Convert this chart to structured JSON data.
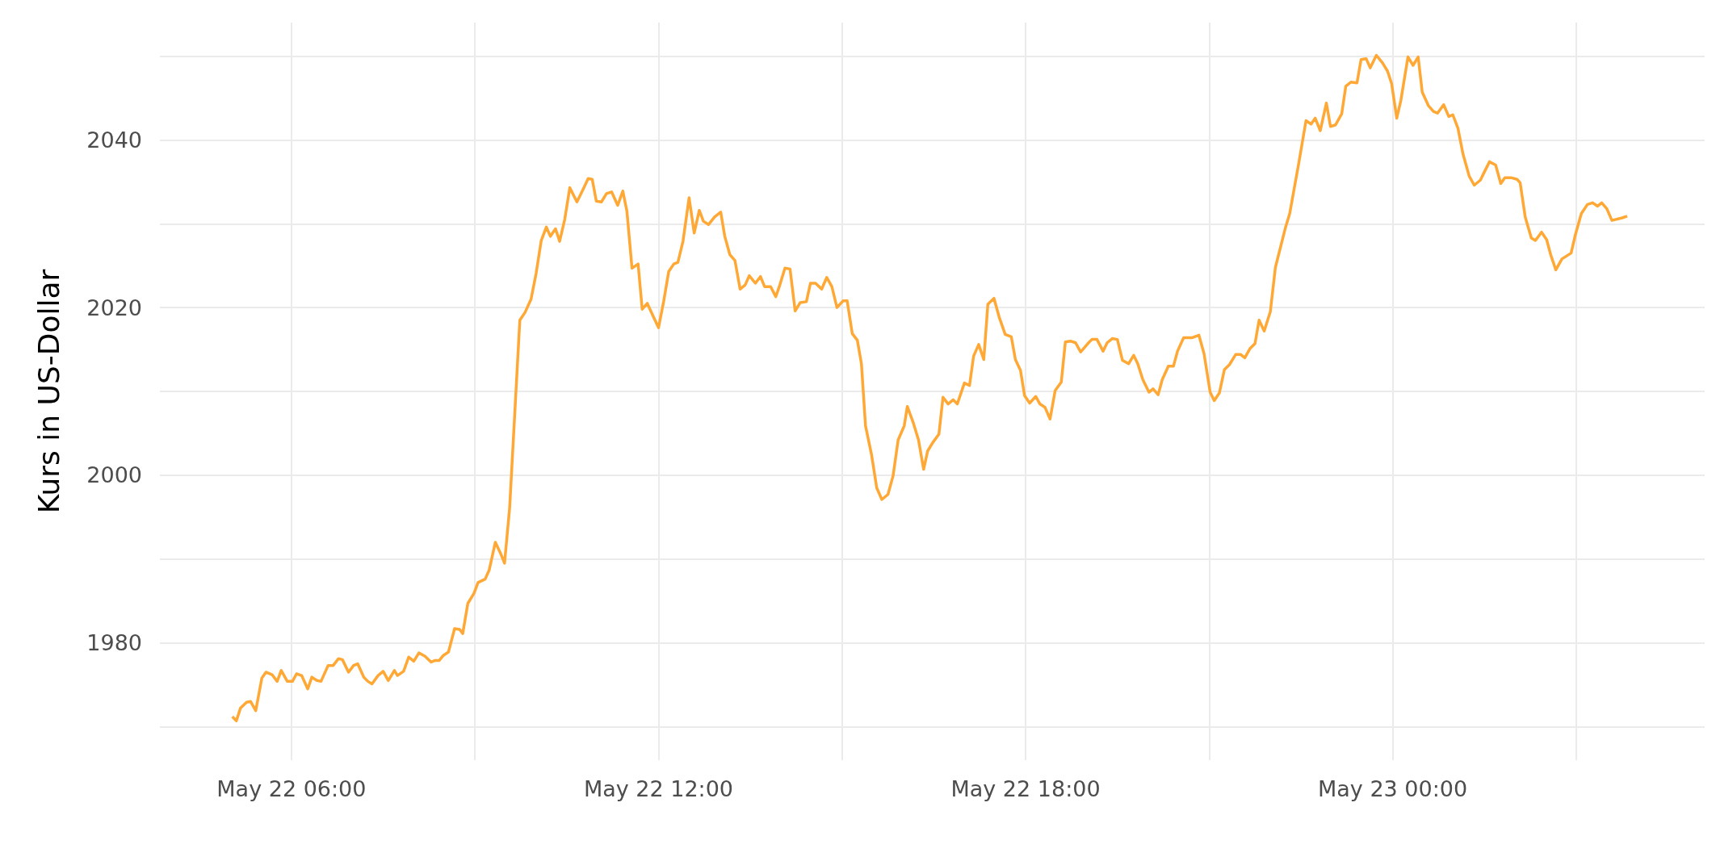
{
  "chart_data": {
    "type": "line",
    "ylabel": "Kurs in US-Dollar",
    "x": [
      "--05-22T05:02",
      "--05-22T05:06",
      "--05-22T05:10",
      "--05-22T05:16",
      "--05-22T05:20",
      "--05-22T05:25",
      "--05-22T05:31",
      "--05-22T05:35",
      "--05-22T05:41",
      "--05-22T05:46",
      "--05-22T05:50",
      "--05-22T05:56",
      "--05-22T06:01",
      "--05-22T06:05",
      "--05-22T06:10",
      "--05-22T06:16",
      "--05-22T06:20",
      "--05-22T06:25",
      "--05-22T06:29",
      "--05-22T06:36",
      "--05-22T06:41",
      "--05-22T06:46",
      "--05-22T06:50",
      "--05-22T06:56",
      "--05-22T07:01",
      "--05-22T07:05",
      "--05-22T07:11",
      "--05-22T07:15",
      "--05-22T07:19",
      "--05-22T07:25",
      "--05-22T07:30",
      "--05-22T07:35",
      "--05-22T07:41",
      "--05-22T07:44",
      "--05-22T07:50",
      "--05-22T07:55",
      "--05-22T08:00",
      "--05-22T08:05",
      "--05-22T08:11",
      "--05-22T08:17",
      "--05-22T08:21",
      "--05-22T08:25",
      "--05-22T08:29",
      "--05-22T08:34",
      "--05-22T08:40",
      "--05-22T08:45",
      "--05-22T08:48",
      "--05-22T08:53",
      "--05-22T08:59",
      "--05-22T09:03",
      "--05-22T09:10",
      "--05-22T09:14",
      "--05-22T09:20",
      "--05-22T09:25",
      "--05-22T09:29",
      "--05-22T09:34",
      "--05-22T09:44",
      "--05-22T09:49",
      "--05-22T09:55",
      "--05-22T10:00",
      "--05-22T10:05",
      "--05-22T10:10",
      "--05-22T10:14",
      "--05-22T10:19",
      "--05-22T10:23",
      "--05-22T10:28",
      "--05-22T10:33",
      "--05-22T10:40",
      "--05-22T10:46",
      "--05-22T10:51",
      "--05-22T10:55",
      "--05-22T10:59",
      "--05-22T11:04",
      "--05-22T11:09",
      "--05-22T11:14",
      "--05-22T11:20",
      "--05-22T11:25",
      "--05-22T11:29",
      "--05-22T11:34",
      "--05-22T11:40",
      "--05-22T11:44",
      "--05-22T11:49",
      "--05-22T11:55",
      "--05-22T12:00",
      "--05-22T12:05",
      "--05-22T12:10",
      "--05-22T12:15",
      "--05-22T12:19",
      "--05-22T12:24",
      "--05-22T12:30",
      "--05-22T12:35",
      "--05-22T12:40",
      "--05-22T12:44",
      "--05-22T12:49",
      "--05-22T12:55",
      "--05-22T13:01",
      "--05-22T13:05",
      "--05-22T13:10",
      "--05-22T13:15",
      "--05-22T13:20",
      "--05-22T13:25",
      "--05-22T13:29",
      "--05-22T13:35",
      "--05-22T13:40",
      "--05-22T13:44",
      "--05-22T13:50",
      "--05-22T13:55",
      "--05-22T13:59",
      "--05-22T14:04",
      "--05-22T14:09",
      "--05-22T14:14",
      "--05-22T14:19",
      "--05-22T14:25",
      "--05-22T14:29",
      "--05-22T14:34",
      "--05-22T14:40",
      "--05-22T14:45",
      "--05-22T14:50",
      "--05-22T14:55",
      "--05-22T15:01",
      "--05-22T15:05",
      "--05-22T15:10",
      "--05-22T15:15",
      "--05-22T15:19",
      "--05-22T15:23",
      "--05-22T15:29",
      "--05-22T15:34",
      "--05-22T15:39",
      "--05-22T15:45",
      "--05-22T15:50",
      "--05-22T15:55",
      "--05-22T16:01",
      "--05-22T16:04",
      "--05-22T16:10",
      "--05-22T16:15",
      "--05-22T16:20",
      "--05-22T16:24",
      "--05-22T16:29",
      "--05-22T16:35",
      "--05-22T16:39",
      "--05-22T16:44",
      "--05-22T16:49",
      "--05-22T16:53",
      "--05-22T17:00",
      "--05-22T17:05",
      "--05-22T17:09",
      "--05-22T17:14",
      "--05-22T17:19",
      "--05-22T17:23",
      "--05-22T17:29",
      "--05-22T17:34",
      "--05-22T17:40",
      "--05-22T17:46",
      "--05-22T17:50",
      "--05-22T17:55",
      "--05-22T17:59",
      "--05-22T18:04",
      "--05-22T18:10",
      "--05-22T18:14",
      "--05-22T18:19",
      "--05-22T18:24",
      "--05-22T18:29",
      "--05-22T18:35",
      "--05-22T18:39",
      "--05-22T18:44",
      "--05-22T18:49",
      "--05-22T18:54",
      "--05-22T19:01",
      "--05-22T19:05",
      "--05-22T19:10",
      "--05-22T19:16",
      "--05-22T19:20",
      "--05-22T19:25",
      "--05-22T19:30",
      "--05-22T19:35",
      "--05-22T19:41",
      "--05-22T19:46",
      "--05-22T19:50",
      "--05-22T19:55",
      "--05-22T20:01",
      "--05-22T20:05",
      "--05-22T20:10",
      "--05-22T20:14",
      "--05-22T20:20",
      "--05-22T20:25",
      "--05-22T20:29",
      "--05-22T20:35",
      "--05-22T20:43",
      "--05-22T20:50",
      "--05-22T20:55",
      "--05-22T21:01",
      "--05-22T21:05",
      "--05-22T21:10",
      "--05-22T21:15",
      "--05-22T21:20",
      "--05-22T21:26",
      "--05-22T21:31",
      "--05-22T21:35",
      "--05-22T21:40",
      "--05-22T21:45",
      "--05-22T21:49",
      "--05-22T21:54",
      "--05-22T22:00",
      "--05-22T22:05",
      "--05-22T22:15",
      "--05-22T22:19",
      "--05-22T22:28",
      "--05-22T22:35",
      "--05-22T22:40",
      "--05-22T22:44",
      "--05-22T22:49",
      "--05-22T22:55",
      "--05-22T22:59",
      "--05-22T23:04",
      "--05-22T23:10",
      "--05-22T23:14",
      "--05-22T23:19",
      "--05-22T23:25",
      "--05-22T23:29",
      "--05-22T23:34",
      "--05-22T23:38",
      "--05-22T23:44",
      "--05-22T23:50",
      "--05-22T23:55",
      "--05-22T23:59",
      "--05-23T00:04",
      "--05-23T00:08",
      "--05-23T00:15",
      "--05-23T00:20",
      "--05-23T00:25",
      "--05-23T00:29",
      "--05-23T00:35",
      "--05-23T00:40",
      "--05-23T00:44",
      "--05-23T00:50",
      "--05-23T00:55",
      "--05-23T00:59",
      "--05-23T01:04",
      "--05-23T01:09",
      "--05-23T01:15",
      "--05-23T01:20",
      "--05-23T01:26",
      "--05-23T01:30",
      "--05-23T01:35",
      "--05-23T01:41",
      "--05-23T01:46",
      "--05-23T01:50",
      "--05-23T01:56",
      "--05-23T02:02",
      "--05-23T02:05",
      "--05-23T02:10",
      "--05-23T02:16",
      "--05-23T02:20",
      "--05-23T02:26",
      "--05-23T02:31",
      "--05-23T02:35",
      "--05-23T02:40",
      "--05-23T02:46",
      "--05-23T02:55",
      "--05-23T02:59",
      "--05-23T03:05",
      "--05-23T03:11",
      "--05-23T03:16",
      "--05-23T03:21",
      "--05-23T03:25",
      "--05-23T03:30",
      "--05-23T03:35",
      "--05-23T03:45",
      "--05-23T03:50"
    ],
    "series": [
      {
        "color": "#ffa836",
        "values": [
          1971.2,
          1970.7,
          1972.2,
          1972.9,
          1973.0,
          1971.9,
          1975.8,
          1976.5,
          1976.2,
          1975.4,
          1976.7,
          1975.4,
          1975.4,
          1976.3,
          1976.1,
          1974.5,
          1975.9,
          1975.5,
          1975.4,
          1977.3,
          1977.3,
          1978.1,
          1978.0,
          1976.5,
          1977.3,
          1977.5,
          1975.9,
          1975.4,
          1975.1,
          1976.1,
          1976.6,
          1975.5,
          1976.7,
          1976.1,
          1976.6,
          1978.3,
          1977.8,
          1978.8,
          1978.4,
          1977.7,
          1977.9,
          1977.9,
          1978.5,
          1978.9,
          1981.7,
          1981.6,
          1981.1,
          1984.7,
          1985.9,
          1987.2,
          1987.6,
          1988.7,
          1992.0,
          1990.7,
          1989.5,
          1996.1,
          2018.5,
          2019.4,
          2021.0,
          2024.1,
          2028.0,
          2029.6,
          2028.5,
          2029.4,
          2027.9,
          2030.5,
          2034.3,
          2032.6,
          2034.1,
          2035.4,
          2035.3,
          2032.7,
          2032.6,
          2033.6,
          2033.8,
          2032.2,
          2033.9,
          2031.5,
          2024.7,
          2025.2,
          2019.8,
          2020.5,
          2018.9,
          2017.6,
          2020.7,
          2024.3,
          2025.2,
          2025.4,
          2027.9,
          2033.1,
          2028.9,
          2031.6,
          2030.3,
          2029.9,
          2030.8,
          2031.4,
          2028.5,
          2026.3,
          2025.6,
          2022.2,
          2022.7,
          2023.8,
          2022.9,
          2023.7,
          2022.5,
          2022.5,
          2021.3,
          2022.7,
          2024.7,
          2024.6,
          2019.6,
          2020.6,
          2020.7,
          2022.9,
          2022.9,
          2022.2,
          2023.6,
          2022.5,
          2020.0,
          2020.8,
          2020.8,
          2016.9,
          2016.1,
          2013.3,
          2005.9,
          2002.4,
          1998.5,
          1997.1,
          1997.7,
          1999.9,
          2004.2,
          2005.9,
          2008.2,
          2006.2,
          2004.2,
          2000.7,
          2002.9,
          2003.9,
          2004.9,
          2009.3,
          2008.5,
          2009.0,
          2008.5,
          2011.0,
          2010.7,
          2014.2,
          2015.6,
          2013.8,
          2020.4,
          2021.1,
          2018.9,
          2016.8,
          2016.5,
          2013.8,
          2012.5,
          2009.5,
          2008.6,
          2009.4,
          2008.5,
          2008.1,
          2006.7,
          2010.1,
          2011.1,
          2015.9,
          2016.0,
          2015.8,
          2014.7,
          2015.7,
          2016.2,
          2016.2,
          2014.8,
          2015.8,
          2016.3,
          2016.2,
          2013.7,
          2013.3,
          2014.3,
          2013.3,
          2011.4,
          2009.9,
          2010.3,
          2009.6,
          2011.4,
          2013.0,
          2013.0,
          2014.8,
          2016.4,
          2016.4,
          2016.7,
          2014.5,
          2009.9,
          2008.9,
          2009.8,
          2012.6,
          2013.2,
          2014.4,
          2014.4,
          2014.0,
          2015.1,
          2015.7,
          2018.5,
          2017.2,
          2019.5,
          2024.8,
          2029.6,
          2031.2,
          2037.3,
          2042.3,
          2041.9,
          2042.6,
          2041.1,
          2044.4,
          2041.6,
          2041.8,
          2043.1,
          2046.4,
          2046.9,
          2046.8,
          2049.6,
          2049.7,
          2048.6,
          2050.1,
          2049.2,
          2048.2,
          2046.7,
          2042.6,
          2044.7,
          2049.9,
          2048.9,
          2049.9,
          2045.7,
          2044.1,
          2043.4,
          2043.2,
          2044.2,
          2042.8,
          2043.0,
          2041.4,
          2038.3,
          2035.7,
          2034.6,
          2035.2,
          2036.2,
          2037.4,
          2037.0,
          2034.8,
          2035.5,
          2035.5,
          2035.3,
          2034.9,
          2030.8,
          2028.3,
          2028.0,
          2029.0,
          2028.1,
          2026.3,
          2024.5,
          2025.8,
          2026.5,
          2028.6,
          2031.2,
          2032.3,
          2032.5,
          2032.1,
          2032.5,
          2031.8,
          2030.4,
          2030.7,
          2030.9
        ]
      }
    ],
    "xlim": [
      "--05-22T03:51",
      "--05-23T05:06"
    ],
    "xticks": [
      {
        "value": "--05-22T06:00",
        "label": "May 22 06:00"
      },
      {
        "value": "--05-22T09:00",
        "label": null
      },
      {
        "value": "--05-22T12:00",
        "label": "May 22 12:00"
      },
      {
        "value": "--05-22T15:00",
        "label": null
      },
      {
        "value": "--05-22T18:00",
        "label": "May 22 18:00"
      },
      {
        "value": "--05-22T21:00",
        "label": null
      },
      {
        "value": "--05-23T00:00",
        "label": "May 23 00:00"
      },
      {
        "value": "--05-23T03:00",
        "label": null
      }
    ],
    "ylim": [
      1966,
      2054
    ],
    "yticks": [
      {
        "value": 1970,
        "label": null
      },
      1980,
      {
        "value": 1990,
        "label": null
      },
      2000,
      {
        "value": 2010,
        "label": null
      },
      2020,
      {
        "value": 2030,
        "label": null
      },
      2040,
      {
        "value": 2050,
        "label": null
      }
    ],
    "grid": true,
    "marker": "none",
    "line_style": "solid"
  }
}
